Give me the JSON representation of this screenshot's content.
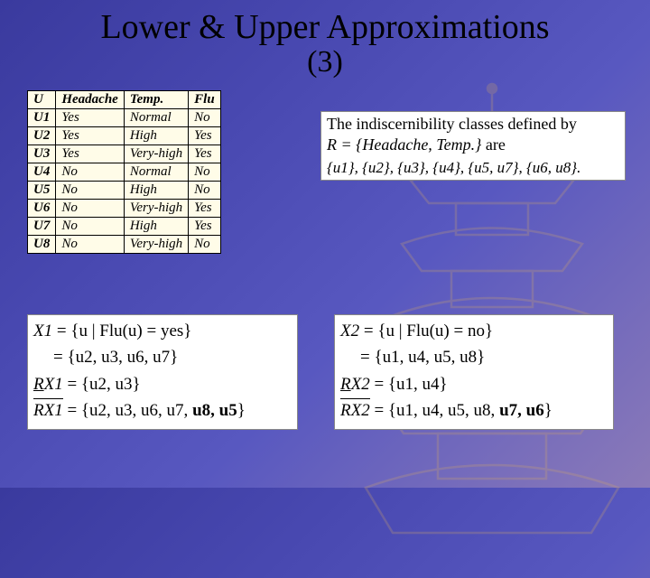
{
  "title": "Lower & Upper Approximations",
  "subtitle": "(3)",
  "table": {
    "headers": [
      "U",
      "Headache",
      "Temp.",
      "Flu"
    ],
    "rows": [
      [
        "U1",
        "Yes",
        "Normal",
        "No"
      ],
      [
        "U2",
        "Yes",
        "High",
        "Yes"
      ],
      [
        "U3",
        "Yes",
        "Very-high",
        "Yes"
      ],
      [
        "U4",
        "No",
        "Normal",
        "No"
      ],
      [
        "U5",
        "No",
        "High",
        "No"
      ],
      [
        "U6",
        "No",
        "Very-high",
        "Yes"
      ],
      [
        "U7",
        "No",
        "High",
        "Yes"
      ],
      [
        "U8",
        "No",
        "Very-high",
        "No"
      ]
    ]
  },
  "infobox": {
    "line1": "The indiscernibility classes defined by",
    "relation": "R = {Headache, Temp.}",
    "are": " are",
    "classes": "{u1}, {u2}, {u3}, {u4}, {u5, u7}, {u6, u8}."
  },
  "left": {
    "l1a": "X1",
    "l1b": " = {u | Flu(u) = yes}",
    "l2": "= {u2, u3, u6, u7}",
    "l3u": "R",
    "l3a": "X1",
    "l3b": " = {u2, u3}",
    "l4var": "RX1",
    "l4a": " = {u2, u3, u6, u7, ",
    "l4bold": "u8, u5",
    "l4end": "}"
  },
  "right": {
    "l1a": "X2",
    "l1b": " = {u | Flu(u) = no}",
    "l2": "= {u1, u4, u5, u8}",
    "l3u": "R",
    "l3a": "X2",
    "l3b": " = {u1, u4}",
    "l4var": "RX2",
    "l4a": " = {u1, u4, u5, u8, ",
    "l4bold": "u7, u6",
    "l4end": "}"
  },
  "colors": {
    "bg_start": "#3a3a9e",
    "bg_end": "#8b7ab8",
    "table_bg": "#fffce8",
    "box_bg": "#ffffff",
    "pagoda": "#c99a5a"
  }
}
